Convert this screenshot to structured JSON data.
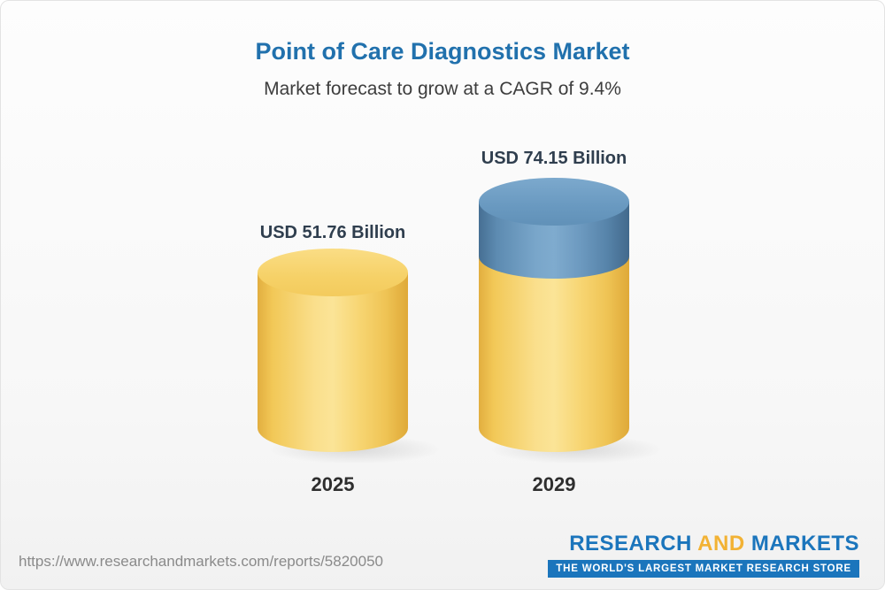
{
  "header": {
    "title": "Point of Care Diagnostics Market",
    "subtitle": "Market forecast to grow at a CAGR of 9.4%"
  },
  "chart_data": {
    "type": "bar",
    "variant": "3d-cylinder",
    "categories": [
      "2025",
      "2029"
    ],
    "values": [
      51.76,
      74.15
    ],
    "unit": "USD Billion",
    "value_labels": [
      "USD 51.76 Billion",
      "USD 74.15 Billion"
    ],
    "cagr_percent": 9.4,
    "legend_position": "none",
    "grid": false,
    "colors": {
      "base_segment": "#F6CE63",
      "growth_segment": "#6191B8",
      "title": "#2171AD",
      "value_label": "#2F3E4E"
    }
  },
  "footer": {
    "url": "https://www.researchandmarkets.com/reports/5820050",
    "logo": {
      "word1": "RESEARCH",
      "word2": "AND",
      "word3": "MARKETS",
      "tagline": "THE WORLD'S LARGEST MARKET RESEARCH STORE"
    }
  }
}
